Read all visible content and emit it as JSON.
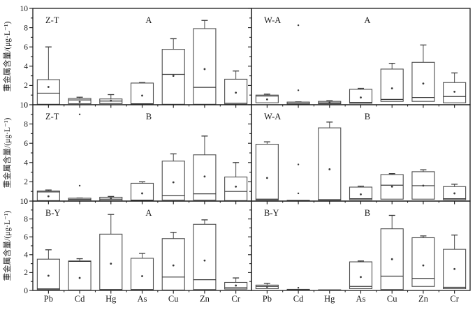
{
  "figure": {
    "title": "heavy-metal-content-boxplot-grid",
    "background": "#ffffff",
    "axis_color": "#1a1a1a",
    "box_color": "#4d4d4d",
    "marker_color": "#3a3a3a"
  },
  "chart_data": {
    "type": "boxplot",
    "layout": "3 rows x 2 columns, shared axes",
    "categories": [
      "Pb",
      "Cd",
      "Hg",
      "As",
      "Cu",
      "Zn",
      "Cr"
    ],
    "ylabel": "重金属含量/(μg·L⁻¹)",
    "ylim": [
      0,
      10
    ],
    "yticks": [
      0,
      2,
      4,
      6,
      8,
      10
    ],
    "grid": false,
    "panels": [
      {
        "site": "Z-T",
        "group": "A",
        "row": 0,
        "col": 0,
        "boxes": [
          {
            "cat": "Pb",
            "low": 0.05,
            "q1": 0.05,
            "med": 1.2,
            "q3": 2.6,
            "high": 6.0,
            "mean": 1.85,
            "out": []
          },
          {
            "cat": "Cd",
            "low": 0.1,
            "q1": 0.1,
            "med": 0.5,
            "q3": 0.65,
            "high": 0.78,
            "mean": 0.3,
            "out": []
          },
          {
            "cat": "Hg",
            "low": 0.12,
            "q1": 0.12,
            "med": 0.38,
            "q3": 0.6,
            "high": 1.05,
            "mean": 0.42,
            "out": []
          },
          {
            "cat": "As",
            "low": 0.05,
            "q1": 0.05,
            "med": 0.1,
            "q3": 2.25,
            "high": 2.3,
            "mean": 0.95,
            "out": []
          },
          {
            "cat": "Cu",
            "low": 0.05,
            "q1": 0.05,
            "med": 3.15,
            "q3": 5.75,
            "high": 6.85,
            "mean": 3.0,
            "out": []
          },
          {
            "cat": "Zn",
            "low": 0.05,
            "q1": 0.05,
            "med": 1.8,
            "q3": 7.9,
            "high": 8.75,
            "mean": 3.7,
            "out": []
          },
          {
            "cat": "Cr",
            "low": 0.05,
            "q1": 0.05,
            "med": 0.15,
            "q3": 2.65,
            "high": 3.5,
            "mean": 1.25,
            "out": []
          }
        ]
      },
      {
        "site": "W-A",
        "group": "A",
        "row": 0,
        "col": 1,
        "boxes": [
          {
            "cat": "Pb",
            "low": 0.2,
            "q1": 0.2,
            "med": 0.9,
            "q3": 1.0,
            "high": 1.1,
            "mean": 0.55,
            "out": []
          },
          {
            "cat": "Cd",
            "low": 0.05,
            "q1": 0.05,
            "med": 0.15,
            "q3": 0.28,
            "high": 0.3,
            "mean": null,
            "out": [
              8.25,
              1.5
            ]
          },
          {
            "cat": "Hg",
            "low": 0.1,
            "q1": 0.1,
            "med": 0.2,
            "q3": 0.35,
            "high": 0.42,
            "mean": 0.22,
            "out": []
          },
          {
            "cat": "As",
            "low": 0.15,
            "q1": 0.15,
            "med": 0.25,
            "q3": 1.6,
            "high": 1.7,
            "mean": 0.75,
            "out": []
          },
          {
            "cat": "Cu",
            "low": 0.35,
            "q1": 0.35,
            "med": 0.55,
            "q3": 3.7,
            "high": 4.3,
            "mean": 1.7,
            "out": []
          },
          {
            "cat": "Zn",
            "low": 0.35,
            "q1": 0.35,
            "med": 0.75,
            "q3": 4.4,
            "high": 6.2,
            "mean": 2.2,
            "out": []
          },
          {
            "cat": "Cr",
            "low": 0.2,
            "q1": 0.2,
            "med": 0.85,
            "q3": 2.3,
            "high": 3.3,
            "mean": 1.35,
            "out": []
          }
        ]
      },
      {
        "site": "Z-T",
        "group": "B",
        "row": 1,
        "col": 0,
        "boxes": [
          {
            "cat": "Pb",
            "low": 0.05,
            "q1": 0.05,
            "med": 0.95,
            "q3": 1.05,
            "high": 1.15,
            "mean": 0.5,
            "out": []
          },
          {
            "cat": "Cd",
            "low": 0.05,
            "q1": 0.05,
            "med": 0.18,
            "q3": 0.3,
            "high": 0.32,
            "mean": null,
            "out": [
              9.0,
              1.6
            ]
          },
          {
            "cat": "Hg",
            "low": 0.05,
            "q1": 0.05,
            "med": 0.2,
            "q3": 0.4,
            "high": 0.48,
            "mean": 0.25,
            "out": []
          },
          {
            "cat": "As",
            "low": 0.05,
            "q1": 0.05,
            "med": 0.1,
            "q3": 1.85,
            "high": 2.0,
            "mean": 0.8,
            "out": []
          },
          {
            "cat": "Cu",
            "low": 0.1,
            "q1": 0.1,
            "med": 0.55,
            "q3": 4.15,
            "high": 4.9,
            "mean": 1.95,
            "out": []
          },
          {
            "cat": "Zn",
            "low": 0.1,
            "q1": 0.1,
            "med": 0.75,
            "q3": 4.8,
            "high": 6.75,
            "mean": 2.55,
            "out": []
          },
          {
            "cat": "Cr",
            "low": 0.05,
            "q1": 0.05,
            "med": 1.0,
            "q3": 2.5,
            "high": 4.0,
            "mean": 1.5,
            "out": []
          }
        ]
      },
      {
        "site": "W-A",
        "group": "B",
        "row": 1,
        "col": 1,
        "boxes": [
          {
            "cat": "Pb",
            "low": 0.1,
            "q1": 0.1,
            "med": 0.2,
            "q3": 5.9,
            "high": 6.15,
            "mean": 2.4,
            "out": []
          },
          {
            "cat": "Cd",
            "low": 0.05,
            "q1": 0.05,
            "med": 0.06,
            "q3": 0.08,
            "high": 0.08,
            "mean": null,
            "out": [
              3.8,
              0.8
            ]
          },
          {
            "cat": "Hg",
            "low": 0.1,
            "q1": 0.1,
            "med": 0.15,
            "q3": 7.6,
            "high": 8.2,
            "mean": 3.3,
            "out": []
          },
          {
            "cat": "As",
            "low": 0.15,
            "q1": 0.15,
            "med": 0.25,
            "q3": 1.45,
            "high": 1.55,
            "mean": 0.7,
            "out": []
          },
          {
            "cat": "Cu",
            "low": 0.2,
            "q1": 0.2,
            "med": 1.65,
            "q3": 2.75,
            "high": 2.85,
            "mean": 1.5,
            "out": []
          },
          {
            "cat": "Zn",
            "low": 0.2,
            "q1": 0.2,
            "med": 1.6,
            "q3": 3.05,
            "high": 3.25,
            "mean": 1.6,
            "out": []
          },
          {
            "cat": "Cr",
            "low": 0.15,
            "q1": 0.15,
            "med": 0.25,
            "q3": 1.5,
            "high": 1.75,
            "mean": 0.8,
            "out": []
          }
        ]
      },
      {
        "site": "B-Y",
        "group": "A",
        "row": 2,
        "col": 0,
        "boxes": [
          {
            "cat": "Pb",
            "low": 0.1,
            "q1": 0.1,
            "med": 0.18,
            "q3": 3.5,
            "high": 4.55,
            "mean": 1.65,
            "out": []
          },
          {
            "cat": "Cd",
            "low": 0.05,
            "q1": 0.05,
            "med": 3.25,
            "q3": 3.3,
            "high": 3.55,
            "mean": 1.4,
            "out": []
          },
          {
            "cat": "Hg",
            "low": 0.05,
            "q1": 0.05,
            "med": 0.1,
            "q3": 6.3,
            "high": 8.5,
            "mean": 3.0,
            "out": []
          },
          {
            "cat": "As",
            "low": 0.05,
            "q1": 0.05,
            "med": 0.1,
            "q3": 3.6,
            "high": 4.15,
            "mean": 1.6,
            "out": []
          },
          {
            "cat": "Cu",
            "low": 0.05,
            "q1": 0.05,
            "med": 1.5,
            "q3": 5.8,
            "high": 6.5,
            "mean": 2.8,
            "out": []
          },
          {
            "cat": "Zn",
            "low": 0.1,
            "q1": 0.1,
            "med": 1.2,
            "q3": 7.4,
            "high": 7.9,
            "mean": 3.35,
            "out": []
          },
          {
            "cat": "Cr",
            "low": 0.15,
            "q1": 0.15,
            "med": 0.3,
            "q3": 0.9,
            "high": 1.4,
            "mean": 0.55,
            "out": []
          }
        ]
      },
      {
        "site": "B-Y",
        "group": "B",
        "row": 2,
        "col": 1,
        "boxes": [
          {
            "cat": "Pb",
            "low": 0.2,
            "q1": 0.2,
            "med": 0.45,
            "q3": 0.6,
            "high": 0.8,
            "mean": 0.4,
            "out": []
          },
          {
            "cat": "Cd",
            "low": 0.08,
            "q1": 0.08,
            "med": 0.1,
            "q3": 0.12,
            "high": 0.12,
            "mean": null,
            "out": [
              0.3
            ]
          },
          {
            "cat": "Hg",
            "low": 0.04,
            "q1": 0.04,
            "med": 0.05,
            "q3": 0.07,
            "high": 0.07,
            "mean": null,
            "out": []
          },
          {
            "cat": "As",
            "low": 0.2,
            "q1": 0.2,
            "med": 0.45,
            "q3": 3.2,
            "high": 3.3,
            "mean": 1.5,
            "out": []
          },
          {
            "cat": "Cu",
            "low": 0.1,
            "q1": 0.1,
            "med": 1.6,
            "q3": 6.9,
            "high": 8.4,
            "mean": 3.5,
            "out": []
          },
          {
            "cat": "Zn",
            "low": 0.45,
            "q1": 0.45,
            "med": 1.35,
            "q3": 5.9,
            "high": 6.1,
            "mean": 2.8,
            "out": []
          },
          {
            "cat": "Cr",
            "low": 0.2,
            "q1": 0.2,
            "med": 0.35,
            "q3": 4.6,
            "high": 6.2,
            "mean": 2.4,
            "out": []
          }
        ]
      }
    ]
  }
}
